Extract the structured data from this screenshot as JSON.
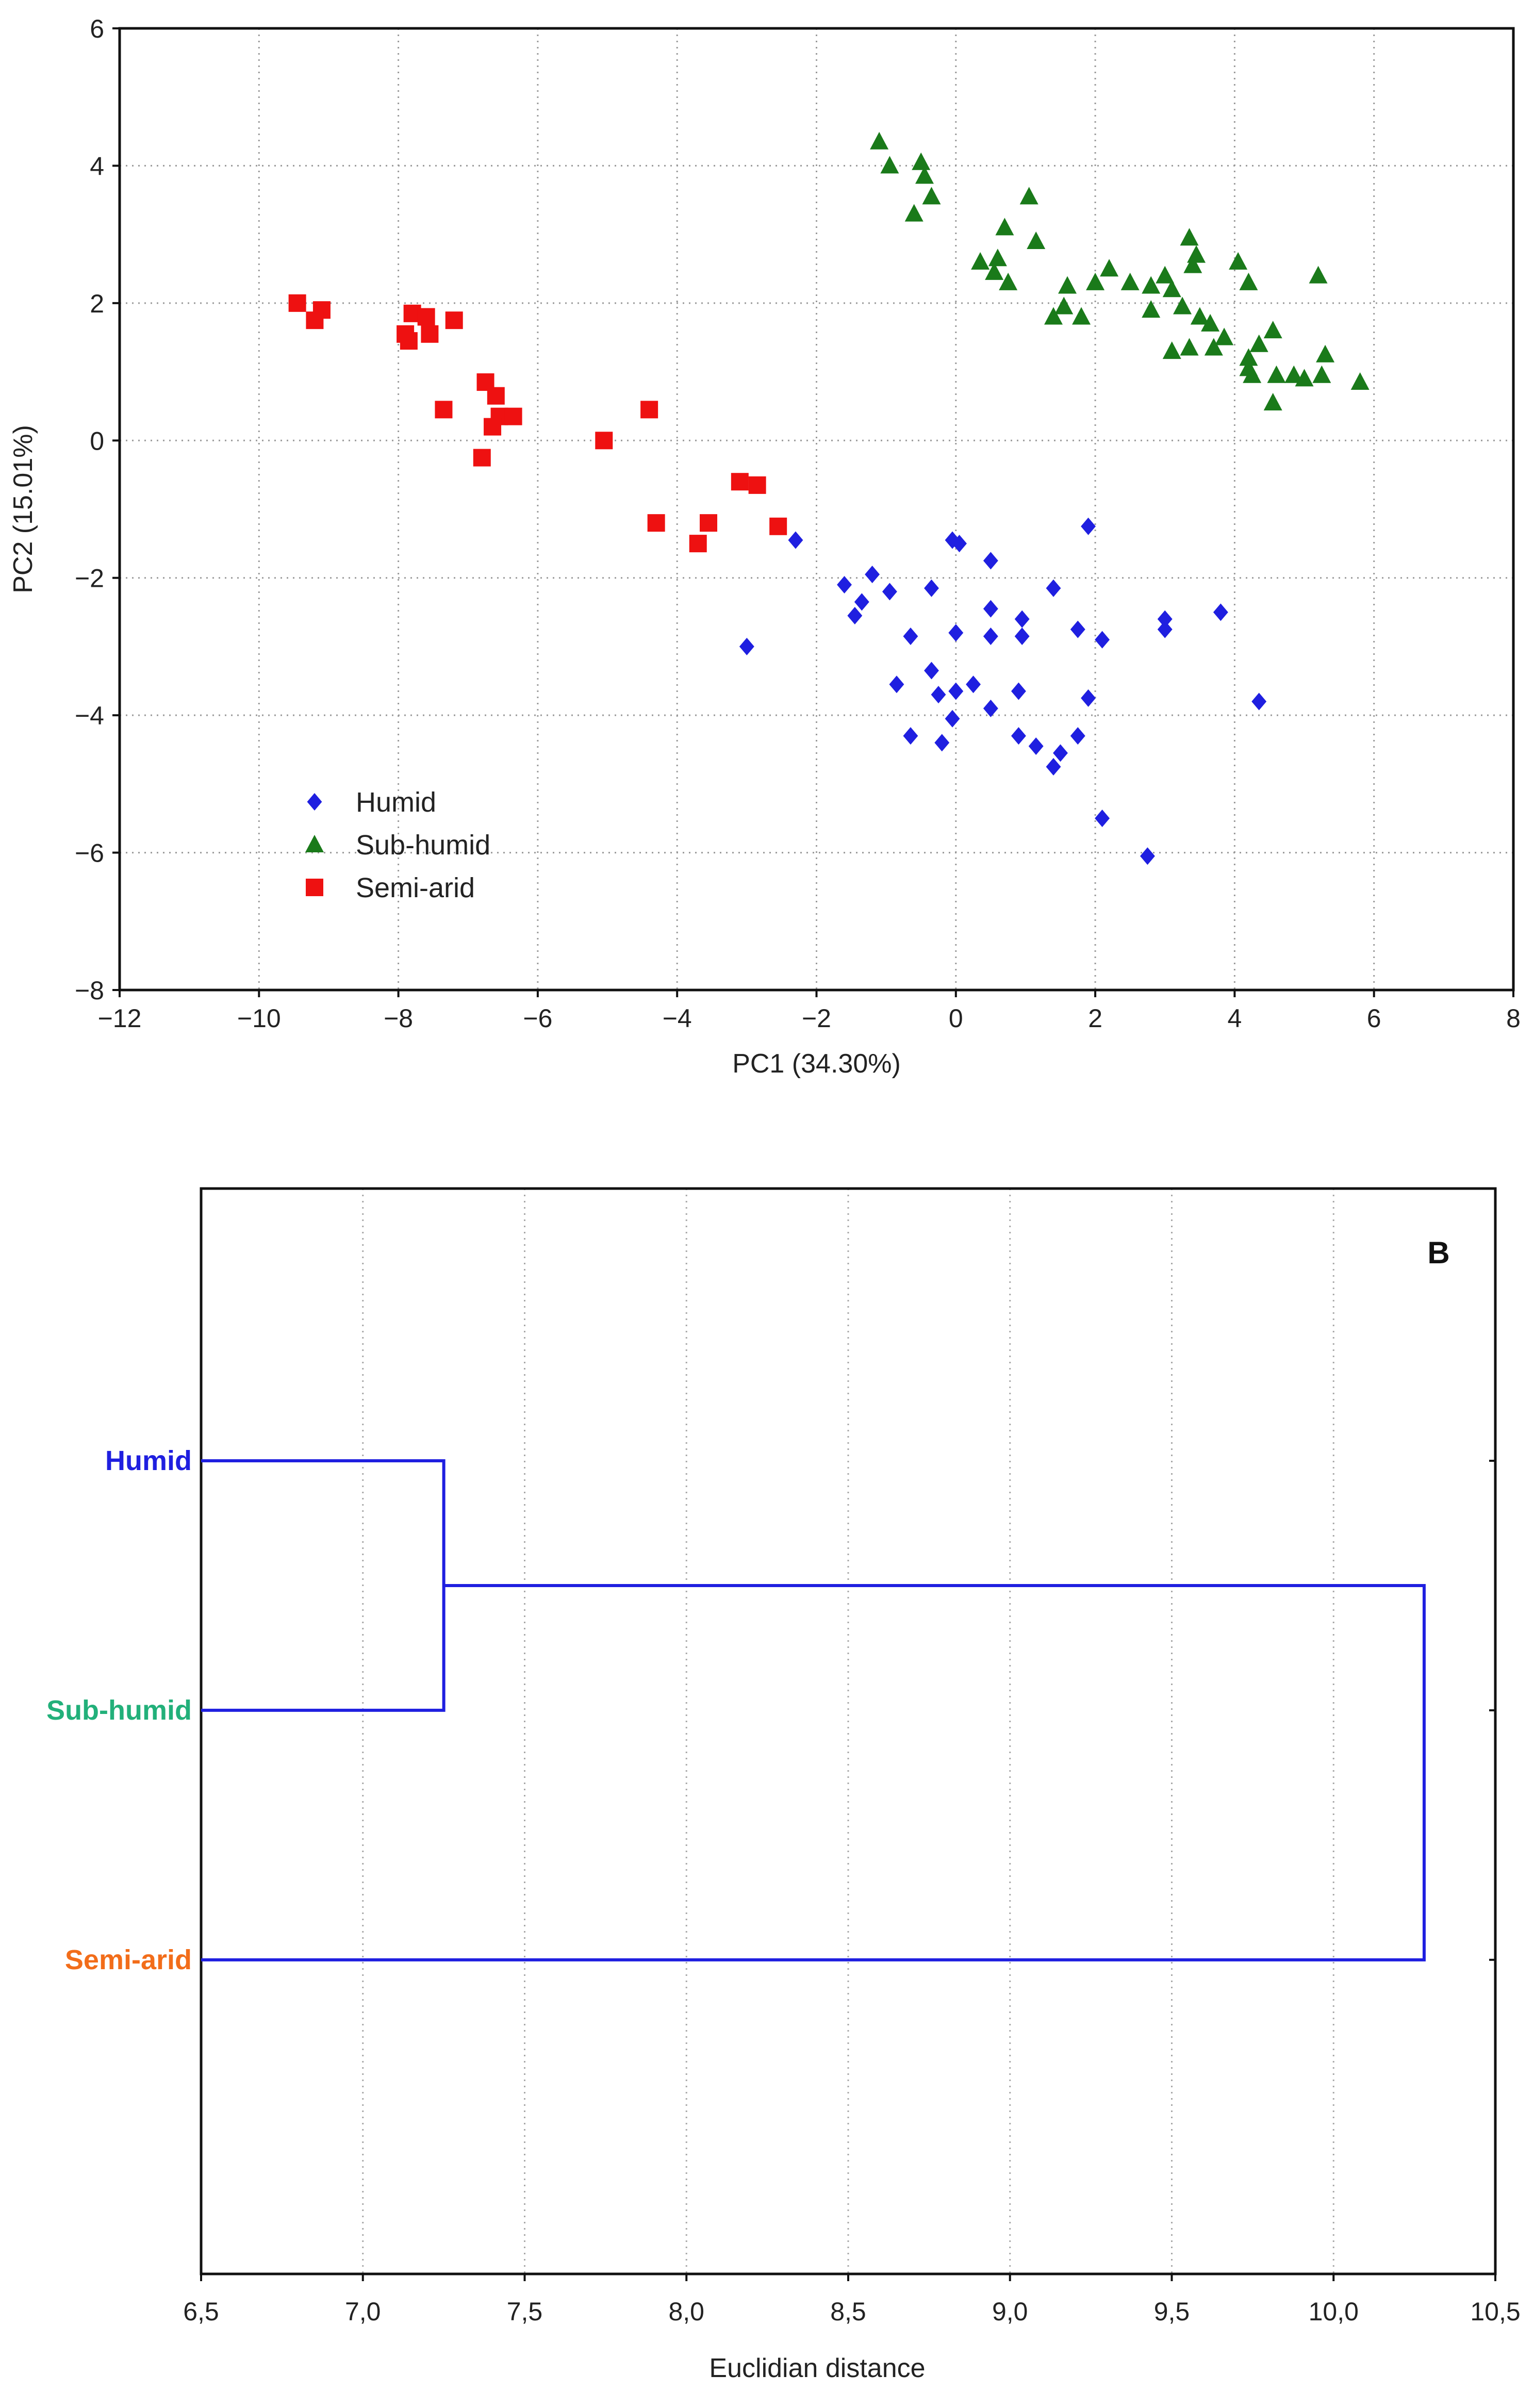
{
  "chart_data": [
    {
      "type": "scatter",
      "title": "",
      "xlabel": "PC1 (34.30%)",
      "ylabel": "PC2 (15.01%)",
      "xlim": [
        -12,
        8
      ],
      "ylim": [
        -8,
        6
      ],
      "xticks": [
        -12,
        -10,
        -8,
        -6,
        -4,
        -2,
        0,
        2,
        4,
        6,
        8
      ],
      "yticks": [
        -8,
        -6,
        -4,
        -2,
        0,
        2,
        4,
        6
      ],
      "grid": true,
      "legend_position": "bottom-left",
      "series": [
        {
          "name": "Humid",
          "marker": "diamond",
          "color": "#1f1fe0",
          "points": [
            [
              -2.3,
              -1.45
            ],
            [
              -0.05,
              -1.45
            ],
            [
              0.05,
              -1.5
            ],
            [
              0.5,
              -1.75
            ],
            [
              1.9,
              -1.25
            ],
            [
              -1.6,
              -2.1
            ],
            [
              -1.2,
              -1.95
            ],
            [
              -0.95,
              -2.2
            ],
            [
              -0.35,
              -2.15
            ],
            [
              1.4,
              -2.15
            ],
            [
              -1.35,
              -2.35
            ],
            [
              -1.45,
              -2.55
            ],
            [
              0.5,
              -2.45
            ],
            [
              0.95,
              -2.6
            ],
            [
              1.75,
              -2.75
            ],
            [
              3.0,
              -2.6
            ],
            [
              3.8,
              -2.5
            ],
            [
              3.0,
              -2.75
            ],
            [
              -3.0,
              -3.0
            ],
            [
              -0.65,
              -2.85
            ],
            [
              0.0,
              -2.8
            ],
            [
              0.5,
              -2.85
            ],
            [
              0.95,
              -2.85
            ],
            [
              2.1,
              -2.9
            ],
            [
              -0.35,
              -3.35
            ],
            [
              -0.85,
              -3.55
            ],
            [
              -0.25,
              -3.7
            ],
            [
              0.25,
              -3.55
            ],
            [
              0.0,
              -3.65
            ],
            [
              0.9,
              -3.65
            ],
            [
              1.9,
              -3.75
            ],
            [
              0.5,
              -3.9
            ],
            [
              -0.05,
              -4.05
            ],
            [
              4.35,
              -3.8
            ],
            [
              -0.65,
              -4.3
            ],
            [
              -0.2,
              -4.4
            ],
            [
              0.9,
              -4.3
            ],
            [
              1.15,
              -4.45
            ],
            [
              1.75,
              -4.3
            ],
            [
              1.5,
              -4.55
            ],
            [
              1.4,
              -4.75
            ],
            [
              2.1,
              -5.5
            ],
            [
              2.75,
              -6.05
            ]
          ]
        },
        {
          "name": "Sub-humid",
          "marker": "triangle",
          "color": "#1a7a1a",
          "points": [
            [
              -1.1,
              4.35
            ],
            [
              -0.95,
              4.0
            ],
            [
              -0.5,
              4.05
            ],
            [
              -0.45,
              3.85
            ],
            [
              -0.35,
              3.55
            ],
            [
              -0.6,
              3.3
            ],
            [
              1.05,
              3.55
            ],
            [
              0.7,
              3.1
            ],
            [
              0.35,
              2.6
            ],
            [
              0.6,
              2.65
            ],
            [
              0.55,
              2.45
            ],
            [
              0.75,
              2.3
            ],
            [
              1.15,
              2.9
            ],
            [
              2.2,
              2.5
            ],
            [
              1.6,
              2.25
            ],
            [
              2.0,
              2.3
            ],
            [
              2.5,
              2.3
            ],
            [
              2.8,
              2.25
            ],
            [
              3.1,
              2.2
            ],
            [
              3.35,
              2.95
            ],
            [
              3.45,
              2.7
            ],
            [
              3.4,
              2.55
            ],
            [
              3.0,
              2.4
            ],
            [
              4.05,
              2.6
            ],
            [
              4.2,
              2.3
            ],
            [
              5.2,
              2.4
            ],
            [
              1.4,
              1.8
            ],
            [
              1.55,
              1.95
            ],
            [
              1.8,
              1.8
            ],
            [
              2.8,
              1.9
            ],
            [
              3.25,
              1.95
            ],
            [
              3.5,
              1.8
            ],
            [
              3.65,
              1.7
            ],
            [
              3.85,
              1.5
            ],
            [
              3.7,
              1.35
            ],
            [
              3.35,
              1.35
            ],
            [
              3.1,
              1.3
            ],
            [
              4.2,
              1.2
            ],
            [
              4.35,
              1.4
            ],
            [
              4.55,
              1.6
            ],
            [
              4.2,
              1.05
            ],
            [
              4.25,
              0.95
            ],
            [
              4.6,
              0.95
            ],
            [
              4.85,
              0.95
            ],
            [
              5.0,
              0.9
            ],
            [
              5.3,
              1.25
            ],
            [
              5.25,
              0.95
            ],
            [
              5.8,
              0.85
            ],
            [
              4.55,
              0.55
            ]
          ]
        },
        {
          "name": "Semi-arid",
          "marker": "square",
          "color": "#ee1111",
          "points": [
            [
              -9.45,
              2.0
            ],
            [
              -9.1,
              1.9
            ],
            [
              -9.2,
              1.75
            ],
            [
              -7.8,
              1.85
            ],
            [
              -7.9,
              1.55
            ],
            [
              -7.85,
              1.45
            ],
            [
              -7.6,
              1.8
            ],
            [
              -7.55,
              1.55
            ],
            [
              -7.2,
              1.75
            ],
            [
              -6.75,
              0.85
            ],
            [
              -6.6,
              0.65
            ],
            [
              -6.55,
              0.35
            ],
            [
              -6.35,
              0.35
            ],
            [
              -6.65,
              0.2
            ],
            [
              -7.35,
              0.45
            ],
            [
              -6.8,
              -0.25
            ],
            [
              -5.05,
              0.0
            ],
            [
              -4.4,
              0.45
            ],
            [
              -3.1,
              -0.6
            ],
            [
              -2.85,
              -0.65
            ],
            [
              -4.3,
              -1.2
            ],
            [
              -3.55,
              -1.2
            ],
            [
              -3.7,
              -1.5
            ],
            [
              -2.55,
              -1.25
            ]
          ]
        }
      ]
    },
    {
      "type": "dendrogram",
      "panel_label": "B",
      "xlabel": "Euclidian distance",
      "xlim": [
        6.5,
        10.5
      ],
      "xticks": [
        "6,5",
        "7,0",
        "7,5",
        "8,0",
        "8,5",
        "9,0",
        "9,5",
        "10,0",
        "10,5"
      ],
      "grid": true,
      "leaves": [
        {
          "label": "Humid",
          "color": "#1f1fe0"
        },
        {
          "label": "Sub-humid",
          "color": "#22b07a"
        },
        {
          "label": "Semi-arid",
          "color": "#f26d1a"
        }
      ],
      "links": [
        {
          "merge": [
            "Humid",
            "Sub-humid"
          ],
          "distance": 7.25
        },
        {
          "merge": [
            "Humid+Sub-humid",
            "Semi-arid"
          ],
          "distance": 10.28
        }
      ],
      "line_color": "#1f1fe0"
    }
  ]
}
